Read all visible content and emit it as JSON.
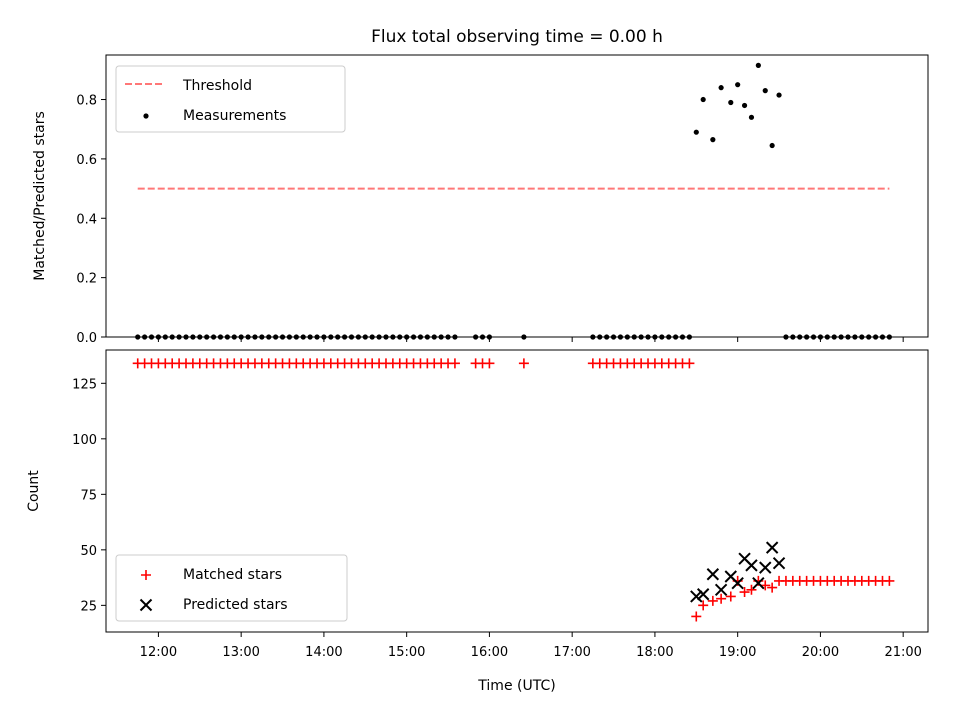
{
  "chart_data": [
    {
      "type": "scatter",
      "title": "Flux total observing time = 0.00 h",
      "xlabel": "",
      "ylabel": "Matched/Predicted stars",
      "xlim": [
        "11:22",
        "21:18"
      ],
      "ylim": [
        0,
        0.95
      ],
      "yticks": [
        "0.0",
        "0.2",
        "0.4",
        "0.6",
        "0.8"
      ],
      "legend": {
        "position": "top-left"
      },
      "series": [
        {
          "name": "Threshold",
          "style": "dashed-line",
          "color": "#ff7777",
          "x": [
            "11:45",
            "20:50"
          ],
          "y": [
            0.5,
            0.5
          ]
        },
        {
          "name": "Measurements",
          "style": "dot",
          "color": "#000000",
          "x": [
            "11:45",
            "11:50",
            "11:55",
            "12:00",
            "12:05",
            "12:10",
            "12:15",
            "12:20",
            "12:25",
            "12:30",
            "12:35",
            "12:40",
            "12:45",
            "12:50",
            "12:55",
            "13:00",
            "13:05",
            "13:10",
            "13:15",
            "13:20",
            "13:25",
            "13:30",
            "13:35",
            "13:40",
            "13:45",
            "13:50",
            "13:55",
            "14:00",
            "14:05",
            "14:10",
            "14:15",
            "14:20",
            "14:25",
            "14:30",
            "14:35",
            "14:40",
            "14:45",
            "14:50",
            "14:55",
            "15:00",
            "15:05",
            "15:10",
            "15:15",
            "15:20",
            "15:25",
            "15:30",
            "15:35",
            "15:50",
            "15:55",
            "16:00",
            "16:25",
            "17:15",
            "17:20",
            "17:25",
            "17:30",
            "17:35",
            "17:40",
            "17:45",
            "17:50",
            "17:55",
            "18:00",
            "18:05",
            "18:10",
            "18:15",
            "18:20",
            "18:25",
            "18:30",
            "18:35",
            "18:42",
            "18:48",
            "18:55",
            "19:00",
            "19:05",
            "19:10",
            "19:15",
            "19:20",
            "19:25",
            "19:30",
            "19:35",
            "19:40",
            "19:45",
            "19:50",
            "19:55",
            "20:00",
            "20:05",
            "20:10",
            "20:15",
            "20:20",
            "20:25",
            "20:30",
            "20:35",
            "20:40",
            "20:45",
            "20:50"
          ],
          "y": [
            0,
            0,
            0,
            0,
            0,
            0,
            0,
            0,
            0,
            0,
            0,
            0,
            0,
            0,
            0,
            0,
            0,
            0,
            0,
            0,
            0,
            0,
            0,
            0,
            0,
            0,
            0,
            0,
            0,
            0,
            0,
            0,
            0,
            0,
            0,
            0,
            0,
            0,
            0,
            0,
            0,
            0,
            0,
            0,
            0,
            0,
            0,
            0,
            0,
            0,
            0,
            0,
            0,
            0,
            0,
            0,
            0,
            0,
            0,
            0,
            0,
            0,
            0,
            0,
            0,
            0,
            0.69,
            0.8,
            0.665,
            0.84,
            0.79,
            0.85,
            0.78,
            0.74,
            0.915,
            0.83,
            0.645,
            0.815,
            0,
            0,
            0,
            0,
            0,
            0,
            0,
            0,
            0,
            0,
            0,
            0,
            0,
            0,
            0,
            0
          ]
        }
      ]
    },
    {
      "type": "scatter",
      "xlabel": "Time (UTC)",
      "ylabel": "Count",
      "xlim": [
        "11:22",
        "21:18"
      ],
      "ylim": [
        13,
        140
      ],
      "xticks": [
        "12:00",
        "13:00",
        "14:00",
        "15:00",
        "16:00",
        "17:00",
        "18:00",
        "19:00",
        "20:00",
        "21:00"
      ],
      "yticks": [
        "25",
        "50",
        "75",
        "100",
        "125"
      ],
      "legend": {
        "position": "bottom-left"
      },
      "series": [
        {
          "name": "Matched stars",
          "style": "plus",
          "color": "#ff0000",
          "x": [
            "11:45",
            "11:50",
            "11:55",
            "12:00",
            "12:05",
            "12:10",
            "12:15",
            "12:20",
            "12:25",
            "12:30",
            "12:35",
            "12:40",
            "12:45",
            "12:50",
            "12:55",
            "13:00",
            "13:05",
            "13:10",
            "13:15",
            "13:20",
            "13:25",
            "13:30",
            "13:35",
            "13:40",
            "13:45",
            "13:50",
            "13:55",
            "14:00",
            "14:05",
            "14:10",
            "14:15",
            "14:20",
            "14:25",
            "14:30",
            "14:35",
            "14:40",
            "14:45",
            "14:50",
            "14:55",
            "15:00",
            "15:05",
            "15:10",
            "15:15",
            "15:20",
            "15:25",
            "15:30",
            "15:35",
            "15:50",
            "15:55",
            "16:00",
            "16:25",
            "17:15",
            "17:20",
            "17:25",
            "17:30",
            "17:35",
            "17:40",
            "17:45",
            "17:50",
            "17:55",
            "18:00",
            "18:05",
            "18:10",
            "18:15",
            "18:20",
            "18:25",
            "18:30",
            "18:35",
            "18:42",
            "18:48",
            "18:55",
            "19:00",
            "19:05",
            "19:10",
            "19:15",
            "19:20",
            "19:25",
            "19:30",
            "19:35",
            "19:40",
            "19:45",
            "19:50",
            "19:55",
            "20:00",
            "20:05",
            "20:10",
            "20:15",
            "20:20",
            "20:25",
            "20:30",
            "20:35",
            "20:40",
            "20:45",
            "20:50"
          ],
          "y": [
            134,
            134,
            134,
            134,
            134,
            134,
            134,
            134,
            134,
            134,
            134,
            134,
            134,
            134,
            134,
            134,
            134,
            134,
            134,
            134,
            134,
            134,
            134,
            134,
            134,
            134,
            134,
            134,
            134,
            134,
            134,
            134,
            134,
            134,
            134,
            134,
            134,
            134,
            134,
            134,
            134,
            134,
            134,
            134,
            134,
            134,
            134,
            134,
            134,
            134,
            134,
            134,
            134,
            134,
            134,
            134,
            134,
            134,
            134,
            134,
            134,
            134,
            134,
            134,
            134,
            134,
            20,
            25,
            27,
            28,
            29,
            36,
            31,
            32,
            36,
            34,
            33,
            36,
            36,
            36,
            36,
            36,
            36,
            36,
            36,
            36,
            36,
            36,
            36,
            36,
            36,
            36,
            36,
            36
          ]
        },
        {
          "name": "Predicted stars",
          "style": "x",
          "color": "#000000",
          "x": [
            "18:30",
            "18:35",
            "18:42",
            "18:48",
            "18:55",
            "19:00",
            "19:05",
            "19:10",
            "19:15",
            "19:20",
            "19:25",
            "19:30"
          ],
          "y": [
            29,
            30,
            39,
            32,
            38,
            35,
            46,
            43,
            35,
            42,
            51,
            44
          ]
        }
      ]
    }
  ]
}
